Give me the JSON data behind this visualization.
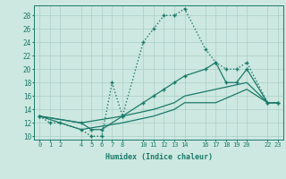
{
  "xlabel": "Humidex (Indice chaleur)",
  "bg_color": "#cde8e0",
  "grid_color": "#aacfc7",
  "line_color": "#1a7a6a",
  "line1_x": [
    0,
    1,
    2,
    4,
    5,
    6,
    7,
    8,
    10,
    11,
    12,
    13,
    14,
    16,
    17,
    18,
    19,
    20,
    22,
    23
  ],
  "line1_y": [
    13,
    12,
    12,
    11,
    10,
    10,
    18,
    13,
    24,
    26,
    28,
    28,
    29,
    23,
    21,
    20,
    20,
    21,
    15,
    15
  ],
  "line2_x": [
    0,
    4,
    5,
    6,
    8,
    10,
    11,
    12,
    13,
    14,
    16,
    17,
    18,
    19,
    20,
    22,
    23
  ],
  "line2_y": [
    13,
    12,
    11,
    11,
    13,
    15,
    16,
    17,
    18,
    19,
    20,
    21,
    18,
    18,
    20,
    15,
    15
  ],
  "line3_x": [
    0,
    4,
    8,
    11,
    13,
    14,
    17,
    20,
    22,
    23
  ],
  "line3_y": [
    13,
    12,
    13,
    14,
    15,
    16,
    17,
    18,
    15,
    15
  ],
  "line4_x": [
    0,
    4,
    8,
    11,
    13,
    14,
    17,
    20,
    22,
    23
  ],
  "line4_y": [
    13,
    11,
    12,
    13,
    14,
    15,
    15,
    17,
    15,
    15
  ],
  "xlim": [
    -0.5,
    23.5
  ],
  "ylim": [
    9.5,
    29.5
  ],
  "xticks": [
    0,
    1,
    2,
    4,
    5,
    6,
    7,
    8,
    10,
    11,
    12,
    13,
    14,
    16,
    17,
    18,
    19,
    20,
    22,
    23
  ],
  "yticks": [
    10,
    12,
    14,
    16,
    18,
    20,
    22,
    24,
    26,
    28
  ]
}
